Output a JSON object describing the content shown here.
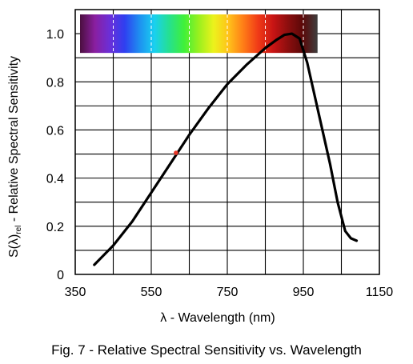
{
  "figure": {
    "caption": "Fig. 7 - Relative Spectral Sensitivity vs. Wavelength"
  },
  "chart_data": {
    "type": "line",
    "xlabel": "λ - Wavelength (nm)",
    "ylabel_main": "S(λ)",
    "ylabel_sub": "rel",
    "ylabel_rest": " - Relative Spectral Sensitivity",
    "xlim": [
      350,
      1150
    ],
    "ylim": [
      0,
      1.1
    ],
    "x_ticks": [
      350,
      550,
      750,
      950,
      1150
    ],
    "x_ticks_display": [
      "350",
      "550",
      "750",
      "950",
      "1150"
    ],
    "y_ticks": [
      0,
      0.2,
      0.4,
      0.6,
      0.8,
      1.0
    ],
    "y_ticks_display": [
      "0",
      "0.2",
      "0.4",
      "0.6",
      "0.8",
      "1.0"
    ],
    "x_grid": [
      350,
      450,
      550,
      650,
      750,
      850,
      950,
      1050,
      1150
    ],
    "y_grid": [
      0,
      0.1,
      0.2,
      0.3,
      0.4,
      0.5,
      0.6,
      0.7,
      0.8,
      0.9,
      1.0,
      1.1
    ],
    "grid": true,
    "line_color": "#000000",
    "marker_color": "#e8392a",
    "series": [
      {
        "x": [
          400,
          450,
          500,
          550,
          600,
          650,
          700,
          750,
          800,
          850,
          880,
          900,
          920,
          940,
          960,
          980,
          1000,
          1020,
          1040,
          1060,
          1075,
          1090
        ],
        "y": [
          0.04,
          0.12,
          0.22,
          0.34,
          0.46,
          0.58,
          0.69,
          0.79,
          0.87,
          0.94,
          0.975,
          0.995,
          1.0,
          0.98,
          0.88,
          0.74,
          0.6,
          0.46,
          0.3,
          0.18,
          0.15,
          0.14
        ]
      }
    ],
    "highlight_point": {
      "x": 615,
      "y": 0.505
    },
    "spectrum_inset": {
      "colors": [
        "#4b0f3f",
        "#8a1fa0",
        "#6b2fd8",
        "#2f3ff0",
        "#1e8ff0",
        "#19d0f0",
        "#25e090",
        "#3ff03a",
        "#9af01e",
        "#ecf21c",
        "#ffc21a",
        "#ff7d17",
        "#f03a17",
        "#c81414",
        "#8c0e0e",
        "#5a0808",
        "#3e3e3e"
      ],
      "x_range": [
        350,
        1000
      ]
    }
  }
}
